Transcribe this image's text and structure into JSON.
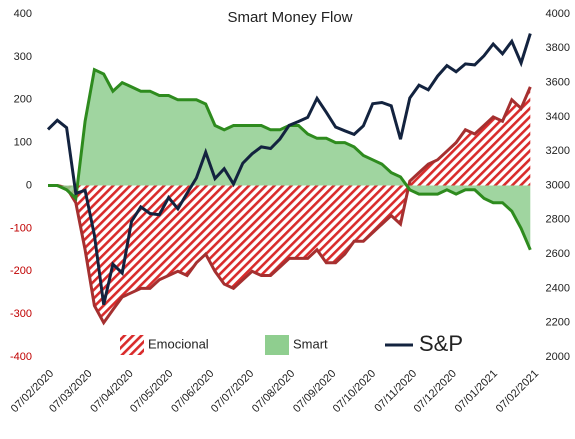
{
  "chart_data": {
    "type": "area-line",
    "title": "Smart Money Flow",
    "x": [
      "07/02/2020",
      "14/02/2020",
      "21/02/2020",
      "28/02/2020",
      "06/03/2020",
      "13/03/2020",
      "20/03/2020",
      "27/03/2020",
      "03/04/2020",
      "10/04/2020",
      "17/04/2020",
      "24/04/2020",
      "01/05/2020",
      "08/05/2020",
      "15/05/2020",
      "22/05/2020",
      "29/05/2020",
      "05/06/2020",
      "12/06/2020",
      "19/06/2020",
      "26/06/2020",
      "03/07/2020",
      "10/07/2020",
      "17/07/2020",
      "24/07/2020",
      "31/07/2020",
      "07/08/2020",
      "14/08/2020",
      "21/08/2020",
      "28/08/2020",
      "04/09/2020",
      "11/09/2020",
      "18/09/2020",
      "25/09/2020",
      "02/10/2020",
      "09/10/2020",
      "16/10/2020",
      "23/10/2020",
      "30/10/2020",
      "06/11/2020",
      "13/11/2020",
      "20/11/2020",
      "27/11/2020",
      "04/12/2020",
      "11/12/2020",
      "18/12/2020",
      "25/12/2020",
      "01/01/2021",
      "08/01/2021",
      "15/01/2021",
      "22/01/2021",
      "29/01/2021",
      "05/02/2021"
    ],
    "series": [
      {
        "name": "Emocional",
        "style": "hatched-area",
        "color": "#d92b2b",
        "line_color": "#a53030",
        "values": [
          0,
          0,
          -5,
          -40,
          -150,
          -280,
          -320,
          -290,
          -260,
          -250,
          -240,
          -240,
          -220,
          -210,
          -200,
          -210,
          -180,
          -160,
          -200,
          -230,
          -240,
          -220,
          -200,
          -210,
          -210,
          -190,
          -170,
          -170,
          -170,
          -150,
          -180,
          -180,
          -160,
          -130,
          -130,
          -110,
          -90,
          -70,
          -90,
          10,
          30,
          50,
          60,
          80,
          100,
          130,
          120,
          140,
          160,
          150,
          200,
          180,
          230
        ]
      },
      {
        "name": "Smart",
        "style": "area",
        "color": "#8fce8f",
        "line_color": "#2e8b1e",
        "values": [
          0,
          0,
          -10,
          -30,
          150,
          270,
          260,
          220,
          240,
          230,
          220,
          220,
          210,
          210,
          200,
          200,
          200,
          190,
          140,
          130,
          140,
          140,
          140,
          140,
          130,
          130,
          140,
          140,
          120,
          110,
          110,
          100,
          100,
          90,
          70,
          60,
          50,
          30,
          20,
          -10,
          -20,
          -20,
          -20,
          -10,
          -20,
          -10,
          -10,
          -30,
          -40,
          -40,
          -60,
          -100,
          -150
        ]
      },
      {
        "name": "S&P",
        "style": "line",
        "color": "#13233f",
        "axis": "y2",
        "values": [
          3327,
          3380,
          3337,
          2954,
          2972,
          2711,
          2305,
          2541,
          2489,
          2790,
          2875,
          2837,
          2830,
          2930,
          2864,
          2955,
          3044,
          3194,
          3041,
          3098,
          3009,
          3130,
          3185,
          3225,
          3216,
          3271,
          3351,
          3373,
          3397,
          3508,
          3427,
          3341,
          3319,
          3298,
          3348,
          3477,
          3484,
          3465,
          3270,
          3510,
          3585,
          3558,
          3638,
          3699,
          3663,
          3709,
          3703,
          3756,
          3825,
          3768,
          3841,
          3714,
          3886
        ]
      }
    ],
    "xticks": [
      "07/02/2020",
      "07/03/2020",
      "07/04/2020",
      "07/05/2020",
      "07/06/2020",
      "07/07/2020",
      "07/08/2020",
      "07/09/2020",
      "07/10/2020",
      "07/11/2020",
      "07/12/2020",
      "07/01/2021",
      "07/02/2021"
    ],
    "ylim": [
      -400,
      400
    ],
    "yticks": [
      -400,
      -300,
      -200,
      -100,
      0,
      100,
      200,
      300,
      400
    ],
    "negative_tick_color": "#c00000",
    "y2lim": [
      2000,
      4000
    ],
    "y2ticks": [
      2000,
      2200,
      2400,
      2600,
      2800,
      3000,
      3200,
      3400,
      3600,
      3800,
      4000
    ],
    "legend": "bottom"
  }
}
